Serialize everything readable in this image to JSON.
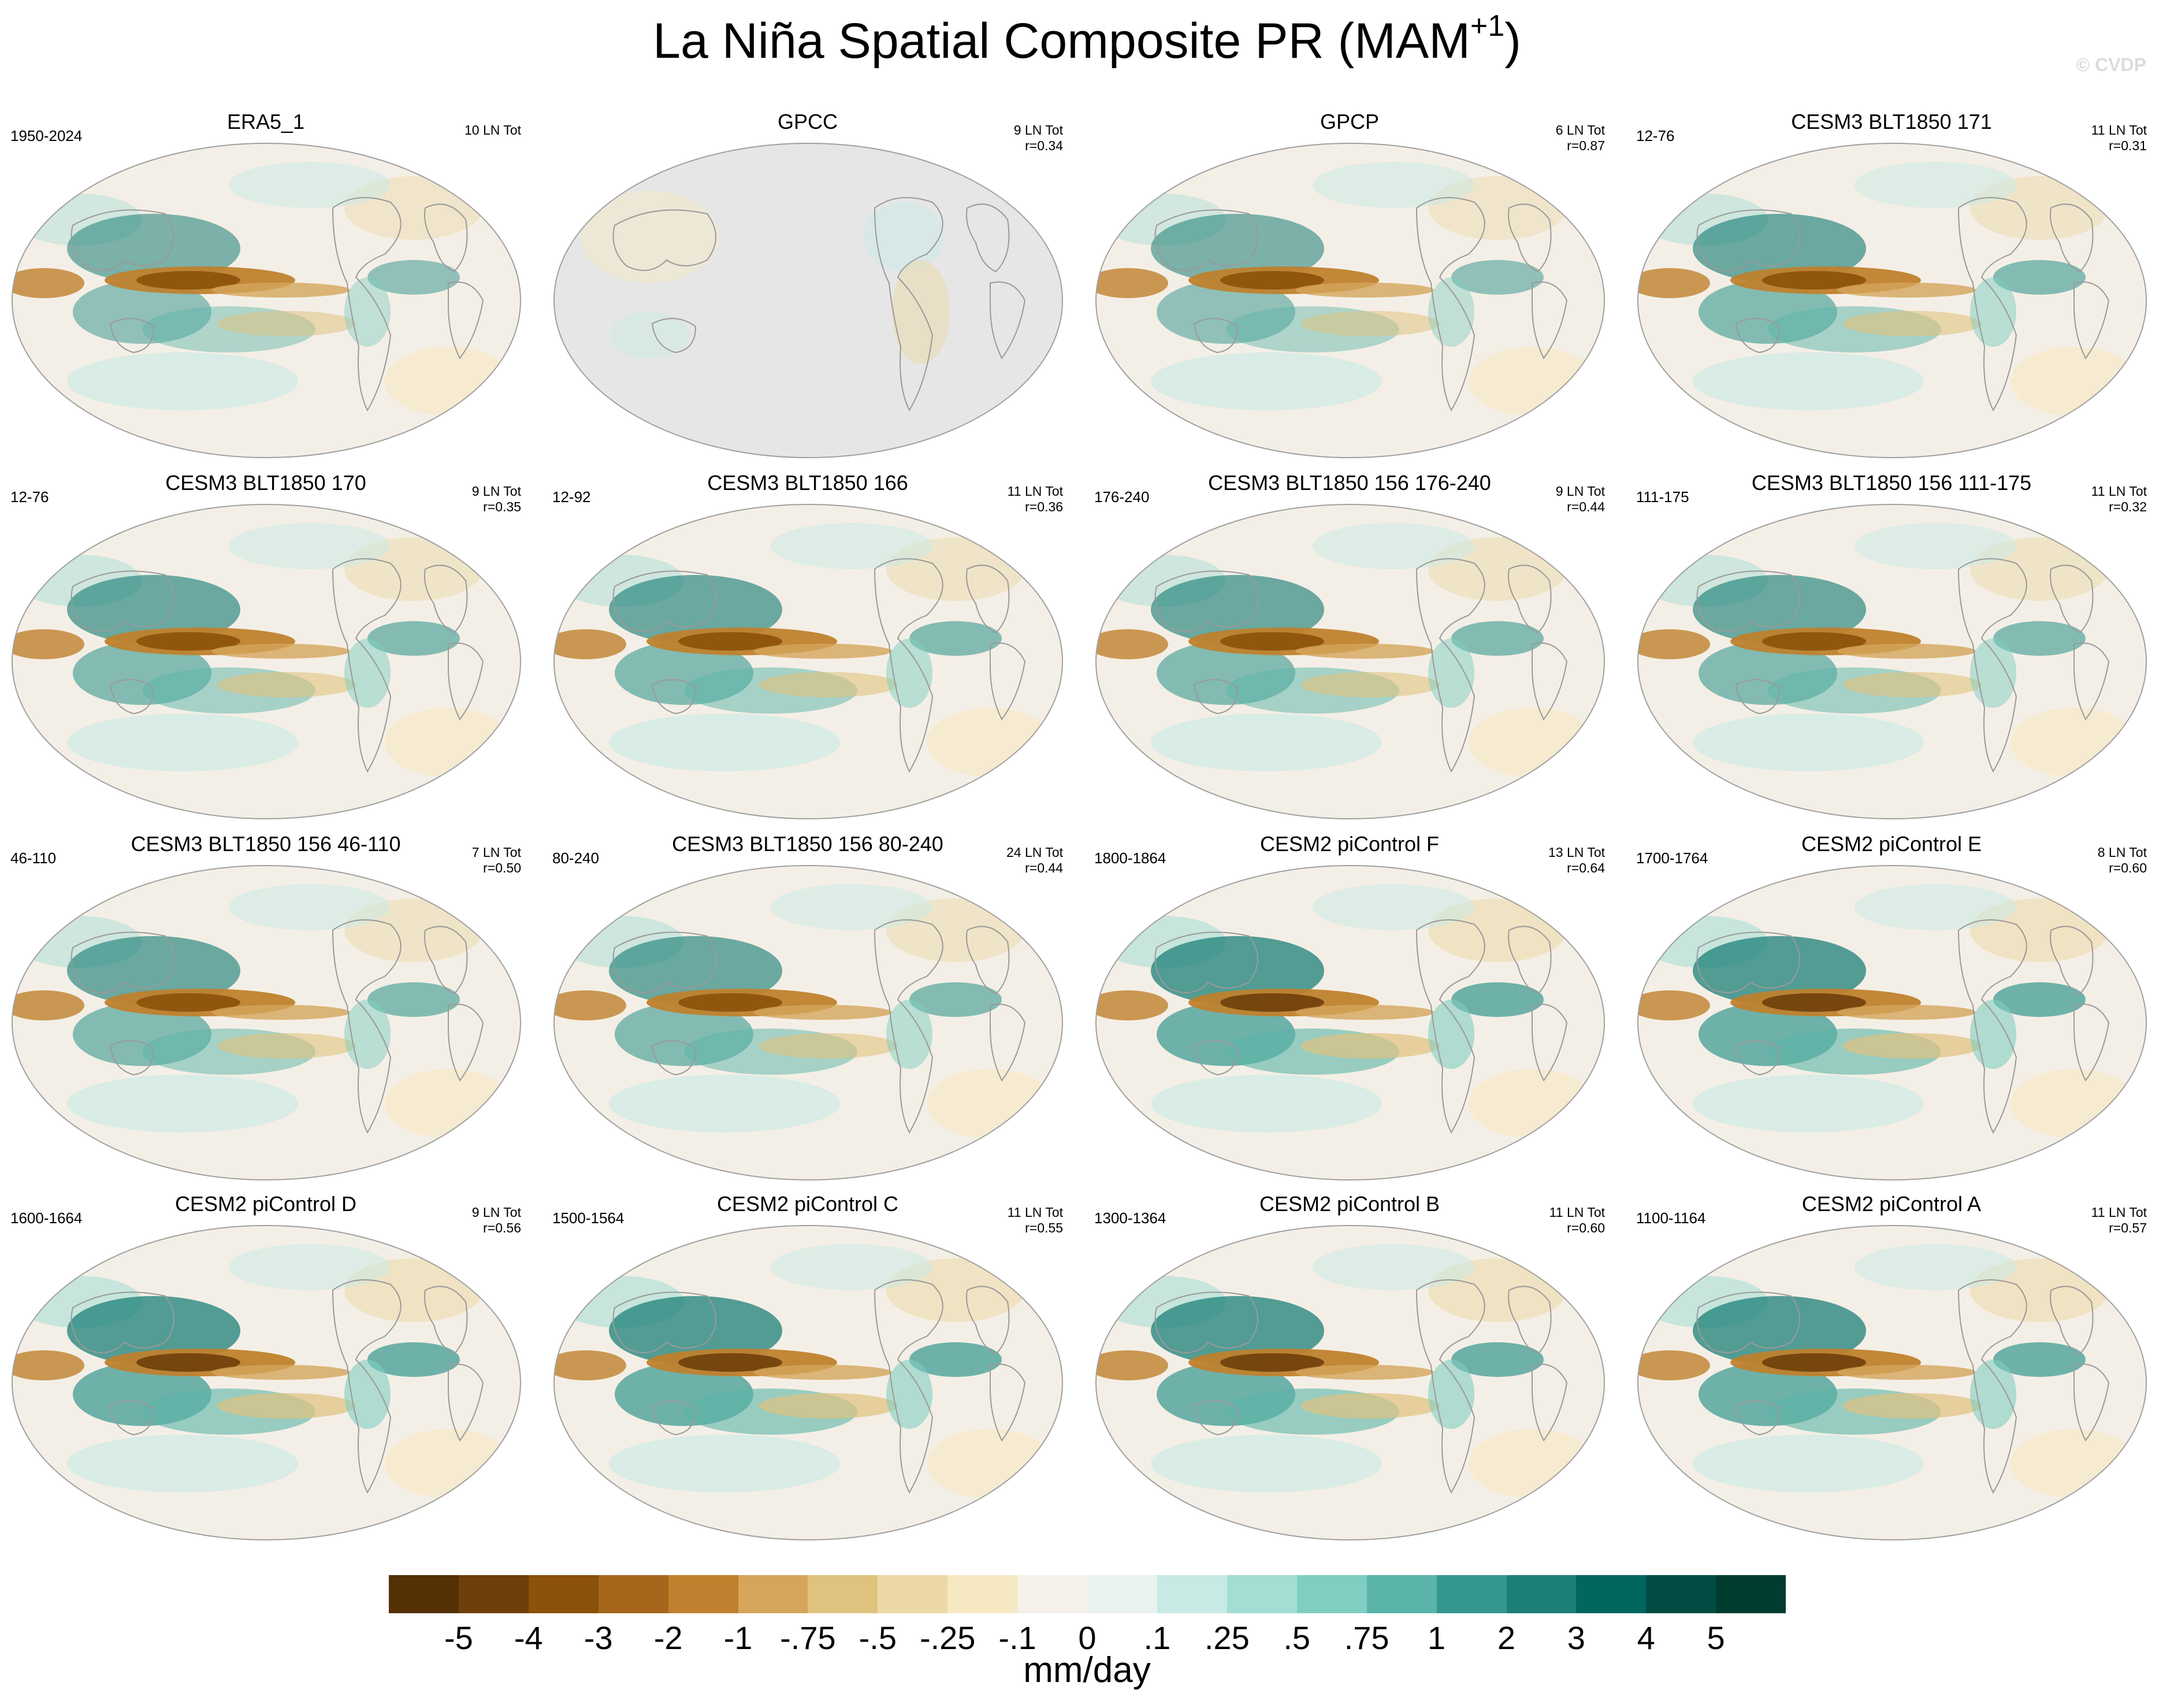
{
  "title": {
    "main": "La Niña Spatial Composite PR (MAM",
    "sup": "+1",
    "close": ")"
  },
  "watermark": "© CVDP",
  "panels": [
    {
      "title": "ERA5_1",
      "period": "1950-2024",
      "count": "10 LN Tot",
      "r": "",
      "style": "obs",
      "land_masked": false
    },
    {
      "title": "GPCC",
      "period": "",
      "count": "9 LN Tot",
      "r": "r=0.34",
      "style": "land",
      "land_masked": true
    },
    {
      "title": "GPCP",
      "period": "",
      "count": "6 LN Tot",
      "r": "r=0.87",
      "style": "obs",
      "land_masked": false
    },
    {
      "title": "CESM3 BLT1850 171",
      "period": "12-76",
      "count": "11 LN Tot",
      "r": "r=0.31",
      "style": "model",
      "land_masked": false
    },
    {
      "title": "CESM3 BLT1850 170",
      "period": "12-76",
      "count": "9 LN Tot",
      "r": "r=0.35",
      "style": "model",
      "land_masked": false
    },
    {
      "title": "CESM3 BLT1850 166",
      "period": "12-92",
      "count": "11 LN Tot",
      "r": "r=0.36",
      "style": "model",
      "land_masked": false
    },
    {
      "title": "CESM3 BLT1850 156 176-240",
      "period": "176-240",
      "count": "9 LN Tot",
      "r": "r=0.44",
      "style": "model",
      "land_masked": false
    },
    {
      "title": "CESM3 BLT1850 156 111-175",
      "period": "111-175",
      "count": "11 LN Tot",
      "r": "r=0.32",
      "style": "model",
      "land_masked": false
    },
    {
      "title": "CESM3 BLT1850 156 46-110",
      "period": "46-110",
      "count": "7 LN Tot",
      "r": "r=0.50",
      "style": "model",
      "land_masked": false
    },
    {
      "title": "CESM3 BLT1850 156 80-240",
      "period": "80-240",
      "count": "24 LN Tot",
      "r": "r=0.44",
      "style": "model",
      "land_masked": false
    },
    {
      "title": "CESM2 piControl F",
      "period": "1800-1864",
      "count": "13 LN Tot",
      "r": "r=0.64",
      "style": "strong",
      "land_masked": false
    },
    {
      "title": "CESM2 piControl E",
      "period": "1700-1764",
      "count": "8 LN Tot",
      "r": "r=0.60",
      "style": "strong",
      "land_masked": false
    },
    {
      "title": "CESM2 piControl D",
      "period": "1600-1664",
      "count": "9 LN Tot",
      "r": "r=0.56",
      "style": "strong",
      "land_masked": false
    },
    {
      "title": "CESM2 piControl C",
      "period": "1500-1564",
      "count": "11 LN Tot",
      "r": "r=0.55",
      "style": "strong",
      "land_masked": false
    },
    {
      "title": "CESM2 piControl B",
      "period": "1300-1364",
      "count": "11 LN Tot",
      "r": "r=0.60",
      "style": "strong",
      "land_masked": false
    },
    {
      "title": "CESM2 piControl A",
      "period": "1100-1164",
      "count": "11 LN Tot",
      "r": "r=0.57",
      "style": "strong",
      "land_masked": false
    }
  ],
  "colorbar": {
    "colors": [
      "#543005",
      "#6e3f0a",
      "#8c510a",
      "#a6661c",
      "#bf812d",
      "#d4a55b",
      "#dfc27d",
      "#ecd8a6",
      "#f6e8c3",
      "#f5f1ea",
      "#eaf2f0",
      "#c7eae5",
      "#a3ddd3",
      "#80cdc1",
      "#5ab4a8",
      "#35978f",
      "#1c8078",
      "#01665e",
      "#014d44",
      "#003c30"
    ],
    "labels": [
      "-5",
      "-4",
      "-3",
      "-2",
      "-1",
      "-.75",
      "-.5",
      "-.25",
      "-.1",
      "0",
      ".1",
      ".25",
      ".5",
      ".75",
      "1",
      "2",
      "3",
      "4",
      "5"
    ],
    "units": "mm/day"
  }
}
